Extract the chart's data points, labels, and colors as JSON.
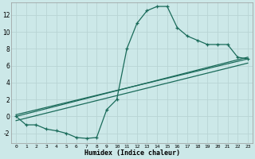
{
  "xlabel": "Humidex (Indice chaleur)",
  "bg_color": "#cce8e8",
  "line_color": "#1a6b5a",
  "grid_color": "#b8d4d4",
  "xlim": [
    -0.5,
    23.5
  ],
  "ylim": [
    -3.2,
    13.5
  ],
  "xticks": [
    0,
    1,
    2,
    3,
    4,
    5,
    6,
    7,
    8,
    9,
    10,
    11,
    12,
    13,
    14,
    15,
    16,
    17,
    18,
    19,
    20,
    21,
    22,
    23
  ],
  "yticks": [
    -2,
    0,
    2,
    4,
    6,
    8,
    10,
    12
  ],
  "curve1_x": [
    0,
    1,
    2,
    3,
    4,
    5,
    6,
    7,
    8,
    9,
    10,
    11,
    12,
    13,
    14,
    15,
    16,
    17,
    18,
    19,
    20,
    21,
    22,
    23
  ],
  "curve1_y": [
    0,
    -1,
    -1,
    -1.5,
    -1.7,
    -2.0,
    -2.5,
    -2.6,
    -2.5,
    0.8,
    2.0,
    8.0,
    11.0,
    12.5,
    13.0,
    13.0,
    10.5,
    9.5,
    9.0,
    8.5,
    8.5,
    8.5,
    7.0,
    6.8
  ],
  "line1_x": [
    0,
    23
  ],
  "line1_y": [
    0.0,
    7.0
  ],
  "line2_x": [
    0,
    23
  ],
  "line2_y": [
    0.2,
    6.8
  ],
  "line3_x": [
    0,
    23
  ],
  "line3_y": [
    -0.5,
    6.3
  ]
}
